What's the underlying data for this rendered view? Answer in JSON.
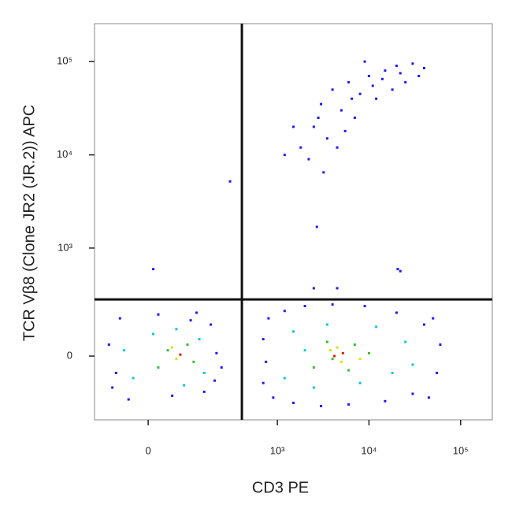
{
  "chart_data": {
    "type": "scatter",
    "x_label": "CD3 PE",
    "y_label": "TCR Vβ8 (Clone JR2 (JR.2)) APC",
    "x_scale": "biexponential",
    "y_scale": "biexponential",
    "xlim": [
      -140,
      221700
    ],
    "ylim": [
      -323,
      254800
    ],
    "xticks": [
      0,
      {
        "value": 1000,
        "label": "10³"
      },
      {
        "value": 10000,
        "label": "10⁴"
      },
      {
        "value": 100000,
        "label": "10⁵"
      }
    ],
    "yticks": [
      0,
      {
        "value": 1000,
        "label": "10³"
      },
      {
        "value": 10000,
        "label": "10⁴"
      },
      {
        "value": 100000,
        "label": "10⁵"
      }
    ],
    "gates": {
      "x": 407,
      "y": 266
    },
    "series": [
      {
        "color": "#1a1aff",
        "x": [
          -80,
          -60,
          200,
          180,
          -40,
          120,
          -90,
          210,
          50,
          20,
          150,
          -70,
          240,
          100,
          700,
          800,
          900,
          1200,
          1500,
          2000,
          3000,
          4000,
          6000,
          9000,
          15000,
          20000,
          30000,
          40000,
          55000,
          60000,
          700,
          750,
          50000,
          45000,
          2500,
          3000,
          4000,
          5000,
          6000,
          8000,
          10000,
          12000,
          15000,
          20000,
          25000,
          30000,
          40000,
          3500,
          2800,
          1200,
          1500,
          7000,
          9000,
          18000,
          4500,
          2200,
          1800,
          6500,
          11000,
          22000,
          35000,
          14000,
          5500,
          3200,
          300,
          2700,
          10,
          20600,
          22000,
          2500,
          4500
        ],
        "values": [
          -120,
          150,
          -90,
          120,
          -180,
          180,
          40,
          10,
          -160,
          170,
          -140,
          -60,
          -40,
          140,
          -100,
          150,
          -170,
          190,
          -200,
          220,
          -220,
          230,
          -210,
          220,
          -190,
          180,
          -150,
          120,
          -60,
          40,
          60,
          -20,
          150,
          -170,
          20000,
          35000,
          50000,
          30000,
          60000,
          45000,
          70000,
          40000,
          80000,
          90000,
          60000,
          95000,
          85000,
          15000,
          25000,
          10000,
          20000,
          25000,
          100000,
          50000,
          12000,
          9000,
          12000,
          40000,
          55000,
          75000,
          70000,
          65000,
          18000,
          6500,
          5200,
          1690,
          590,
          590,
          560,
          360,
          360
        ]
      },
      {
        "color": "#00c8e0",
        "x": [
          -30,
          60,
          150,
          130,
          -50,
          80,
          10,
          1200,
          1500,
          2500,
          3500,
          8000,
          12000,
          18000,
          25000,
          2000,
          30000
        ],
        "values": [
          -80,
          100,
          -60,
          60,
          20,
          -110,
          80,
          -80,
          90,
          -120,
          120,
          -100,
          110,
          -60,
          50,
          20,
          -30
        ]
      },
      {
        "color": "#30c030",
        "x": [
          20,
          90,
          40,
          110,
          2500,
          3500,
          6000,
          7000,
          10000,
          4000
        ],
        "values": [
          -40,
          40,
          20,
          -20,
          -40,
          50,
          -50,
          40,
          10,
          -10
        ]
      },
      {
        "color": "#e0e000",
        "x": [
          60,
          50,
          3800,
          5000,
          4500,
          8000
        ],
        "values": [
          -10,
          30,
          20,
          -20,
          30,
          -10
        ]
      },
      {
        "color": "#e02000",
        "x": [
          70,
          4200,
          5200
        ],
        "values": [
          5,
          0,
          10
        ]
      }
    ]
  }
}
